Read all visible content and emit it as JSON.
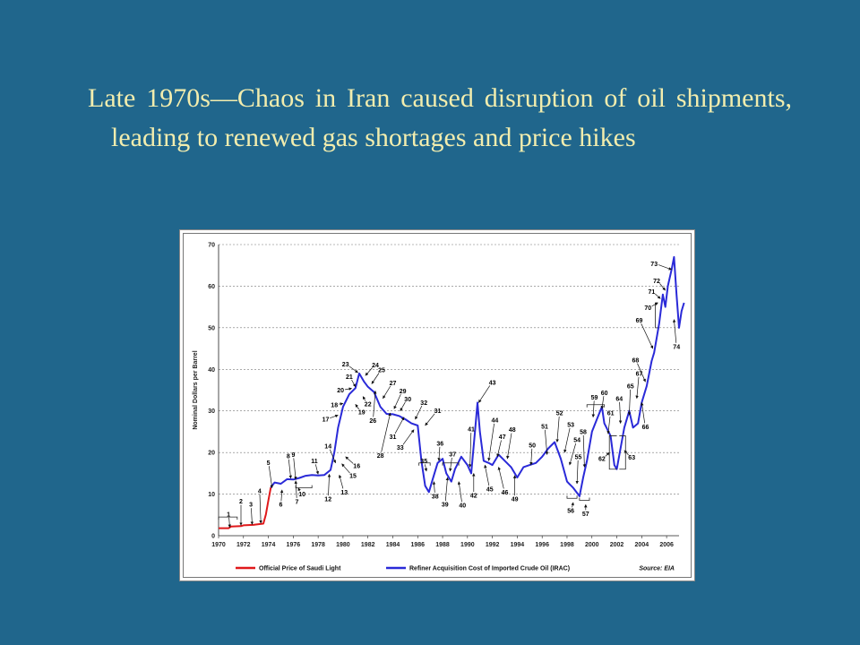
{
  "slide": {
    "title": "Late 1970s—Chaos in Iran caused disruption of oil shipments, leading to renewed gas shortages and price hikes"
  },
  "colors": {
    "background": "#20668c",
    "title_text": "#f2edae",
    "saudi_series": "#e0191b",
    "irac_series": "#2a2ad8"
  },
  "chart_data": {
    "type": "line",
    "ylabel": "Nominal Dollars per Barrel",
    "xlabel": "",
    "ylim": [
      0,
      70
    ],
    "xlim": [
      1970,
      2007
    ],
    "yticks": [
      0,
      10,
      20,
      30,
      40,
      50,
      60,
      70
    ],
    "xticks": [
      1970,
      1972,
      1974,
      1976,
      1978,
      1980,
      1982,
      1984,
      1986,
      1988,
      1990,
      1992,
      1994,
      1996,
      1998,
      2000,
      2002,
      2004,
      2006
    ],
    "grid": "horizontal dotted",
    "legend_position": "bottom",
    "source_note": "Source: EIA",
    "series": [
      {
        "name": "Official Price of Saudi Light",
        "color": "#e0191b",
        "points": [
          [
            1970,
            1.8
          ],
          [
            1970.8,
            1.8
          ],
          [
            1971,
            2.2
          ],
          [
            1971.8,
            2.3
          ],
          [
            1972,
            2.5
          ],
          [
            1972.8,
            2.6
          ],
          [
            1973,
            2.7
          ],
          [
            1973.6,
            2.9
          ],
          [
            1973.8,
            5.1
          ],
          [
            1974.0,
            8.5
          ],
          [
            1974.2,
            11.6
          ]
        ]
      },
      {
        "name": "Refiner Acquisition Cost of Imported Crude Oil (IRAC)",
        "color": "#2a2ad8",
        "points": [
          [
            1974.2,
            11.6
          ],
          [
            1974.5,
            12.8
          ],
          [
            1975,
            12.5
          ],
          [
            1975.5,
            13.6
          ],
          [
            1976,
            13.5
          ],
          [
            1976.5,
            13.9
          ],
          [
            1977,
            14.4
          ],
          [
            1977.5,
            14.6
          ],
          [
            1978,
            14.5
          ],
          [
            1978.5,
            14.6
          ],
          [
            1979,
            15.8
          ],
          [
            1979.3,
            20
          ],
          [
            1979.6,
            26
          ],
          [
            1980,
            31
          ],
          [
            1980.5,
            34
          ],
          [
            1981,
            35.5
          ],
          [
            1981.3,
            39
          ],
          [
            1981.7,
            37
          ],
          [
            1982,
            35.8
          ],
          [
            1982.5,
            34.5
          ],
          [
            1983,
            31
          ],
          [
            1983.5,
            29.3
          ],
          [
            1984,
            29.2
          ],
          [
            1984.5,
            28.8
          ],
          [
            1985,
            28
          ],
          [
            1985.5,
            27
          ],
          [
            1986,
            26.5
          ],
          [
            1986.3,
            18
          ],
          [
            1986.6,
            12
          ],
          [
            1986.9,
            10.5
          ],
          [
            1987.2,
            13.5
          ],
          [
            1987.6,
            17.5
          ],
          [
            1988,
            18.5
          ],
          [
            1988.3,
            15
          ],
          [
            1988.7,
            13
          ],
          [
            1989,
            16
          ],
          [
            1989.5,
            19
          ],
          [
            1990,
            17
          ],
          [
            1990.3,
            15
          ],
          [
            1990.6,
            25
          ],
          [
            1990.8,
            32
          ],
          [
            1991,
            25
          ],
          [
            1991.3,
            18
          ],
          [
            1991.7,
            17.5
          ],
          [
            1992,
            17
          ],
          [
            1992.5,
            19.5
          ],
          [
            1993,
            18
          ],
          [
            1993.5,
            16.5
          ],
          [
            1994,
            14
          ],
          [
            1994.5,
            16.5
          ],
          [
            1995,
            17
          ],
          [
            1995.5,
            17.5
          ],
          [
            1996,
            19
          ],
          [
            1996.5,
            21
          ],
          [
            1997,
            22.5
          ],
          [
            1997.5,
            18.5
          ],
          [
            1998,
            13
          ],
          [
            1998.5,
            11.5
          ],
          [
            1999,
            9.5
          ],
          [
            1999.3,
            14
          ],
          [
            1999.6,
            18
          ],
          [
            2000,
            25
          ],
          [
            2000.4,
            28
          ],
          [
            2000.8,
            31
          ],
          [
            2001,
            27
          ],
          [
            2001.5,
            24
          ],
          [
            2001.8,
            17
          ],
          [
            2002,
            16
          ],
          [
            2002.3,
            21
          ],
          [
            2002.6,
            26
          ],
          [
            2003,
            30
          ],
          [
            2003.3,
            26
          ],
          [
            2003.7,
            27
          ],
          [
            2004,
            32
          ],
          [
            2004.4,
            36
          ],
          [
            2004.8,
            42
          ],
          [
            2005,
            44
          ],
          [
            2005.4,
            51
          ],
          [
            2005.7,
            58
          ],
          [
            2005.9,
            55
          ],
          [
            2006.1,
            60
          ],
          [
            2006.4,
            64
          ],
          [
            2006.6,
            67
          ],
          [
            2006.8,
            58
          ],
          [
            2007,
            50
          ],
          [
            2007.2,
            54
          ],
          [
            2007.4,
            56
          ]
        ]
      }
    ],
    "annotations": [
      {
        "label": "1",
        "x": 1970.8,
        "y": 5.2,
        "ax": 1970.9,
        "ay": 2.0
      },
      {
        "label": "2",
        "x": 1971.8,
        "y": 8.3,
        "ax": 1971.8,
        "ay": 2.5
      },
      {
        "label": "3",
        "x": 1972.6,
        "y": 7.5,
        "ax": 1972.7,
        "ay": 2.7
      },
      {
        "label": "4",
        "x": 1973.3,
        "y": 10.8,
        "ax": 1973.4,
        "ay": 3.0
      },
      {
        "label": "5",
        "x": 1974.0,
        "y": 17.6,
        "ax": 1974.3,
        "ay": 11.5
      },
      {
        "label": "6",
        "x": 1975.0,
        "y": 7.5,
        "ax": 1975.1,
        "ay": 11.0
      },
      {
        "label": "7",
        "x": 1976.3,
        "y": 8.2,
        "ax": 1976.2,
        "ay": 13.2
      },
      {
        "label": "8",
        "x": 1975.6,
        "y": 19.2,
        "ax": 1975.8,
        "ay": 13.8
      },
      {
        "label": "9",
        "x": 1976.0,
        "y": 19.5,
        "ax": 1976.2,
        "ay": 13.5
      },
      {
        "label": "10",
        "x": 1976.7,
        "y": 10.0,
        "ax": 1976.4,
        "ay": 11.5
      },
      {
        "label": "11",
        "x": 1977.7,
        "y": 18.0,
        "ax": 1978.0,
        "ay": 14.8
      },
      {
        "label": "12",
        "x": 1978.8,
        "y": 8.8,
        "ax": 1978.9,
        "ay": 14.8
      },
      {
        "label": "13",
        "x": 1980.1,
        "y": 10.5,
        "ax": 1979.7,
        "ay": 14.6
      },
      {
        "label": "14",
        "x": 1978.8,
        "y": 21.5,
        "ax": 1979.4,
        "ay": 17.5
      },
      {
        "label": "15",
        "x": 1980.8,
        "y": 14.4,
        "ax": 1979.9,
        "ay": 17.3
      },
      {
        "label": "16",
        "x": 1981.1,
        "y": 16.8,
        "ax": 1980.2,
        "ay": 19.0
      },
      {
        "label": "17",
        "x": 1978.6,
        "y": 28.0,
        "ax": 1979.6,
        "ay": 29.0
      },
      {
        "label": "18",
        "x": 1979.3,
        "y": 31.5,
        "ax": 1980.0,
        "ay": 31.8
      },
      {
        "label": "19",
        "x": 1981.5,
        "y": 29.7,
        "ax": 1981.0,
        "ay": 31.6
      },
      {
        "label": "20",
        "x": 1979.8,
        "y": 35.0,
        "ax": 1980.7,
        "ay": 35.4
      },
      {
        "label": "21",
        "x": 1980.5,
        "y": 38.2,
        "ax": 1981.0,
        "ay": 35.8
      },
      {
        "label": "22",
        "x": 1982.0,
        "y": 31.7,
        "ax": 1981.6,
        "ay": 33.5
      },
      {
        "label": "23",
        "x": 1980.2,
        "y": 41.2,
        "ax": 1981.2,
        "ay": 39.2
      },
      {
        "label": "24",
        "x": 1982.6,
        "y": 41.0,
        "ax": 1981.8,
        "ay": 38.5
      },
      {
        "label": "25",
        "x": 1983.1,
        "y": 39.8,
        "ax": 1982.3,
        "ay": 36.5
      },
      {
        "label": "26",
        "x": 1982.4,
        "y": 27.7,
        "ax": 1982.6,
        "ay": 34.8
      },
      {
        "label": "27",
        "x": 1984.0,
        "y": 36.7,
        "ax": 1983.2,
        "ay": 33.0
      },
      {
        "label": "28",
        "x": 1983.0,
        "y": 19.3,
        "ax": 1983.8,
        "ay": 29.5
      },
      {
        "label": "29",
        "x": 1984.8,
        "y": 34.8,
        "ax": 1984.1,
        "ay": 30.5
      },
      {
        "label": "30",
        "x": 1985.2,
        "y": 32.9,
        "ax": 1984.6,
        "ay": 30.0
      },
      {
        "label": "31",
        "x": 1984.0,
        "y": 23.8,
        "ax": 1984.9,
        "ay": 28.5
      },
      {
        "label": "32",
        "x": 1986.5,
        "y": 32.0,
        "ax": 1985.8,
        "ay": 28.0
      },
      {
        "label": "33",
        "x": 1984.6,
        "y": 21.2,
        "ax": 1985.7,
        "ay": 25.5
      },
      {
        "label": "31",
        "x": 1987.6,
        "y": 30.0,
        "ax": 1986.6,
        "ay": 26.5
      },
      {
        "label": "35",
        "x": 1986.5,
        "y": 18.0,
        "ax": 1986.7,
        "ay": 15.5
      },
      {
        "label": "36",
        "x": 1987.8,
        "y": 22.2,
        "ax": 1987.7,
        "ay": 18.0
      },
      {
        "label": "37",
        "x": 1988.8,
        "y": 19.6,
        "ax": 1988.6,
        "ay": 15.5
      },
      {
        "label": "38",
        "x": 1987.4,
        "y": 9.5,
        "ax": 1987.3,
        "ay": 13.0
      },
      {
        "label": "39",
        "x": 1988.2,
        "y": 7.5,
        "ax": 1988.4,
        "ay": 14.0
      },
      {
        "label": "40",
        "x": 1989.6,
        "y": 7.3,
        "ax": 1989.3,
        "ay": 13.0
      },
      {
        "label": "41",
        "x": 1990.3,
        "y": 25.6,
        "ax": 1990.2,
        "ay": 16.5
      },
      {
        "label": "42",
        "x": 1990.5,
        "y": 9.7,
        "ax": 1990.5,
        "ay": 15.0
      },
      {
        "label": "43",
        "x": 1992.0,
        "y": 36.8,
        "ax": 1990.9,
        "ay": 32.0
      },
      {
        "label": "44",
        "x": 1992.2,
        "y": 27.8,
        "ax": 1991.7,
        "ay": 18.0
      },
      {
        "label": "45",
        "x": 1991.8,
        "y": 11.2,
        "ax": 1991.4,
        "ay": 17.0
      },
      {
        "label": "46",
        "x": 1993.0,
        "y": 10.5,
        "ax": 1992.5,
        "ay": 16.5
      },
      {
        "label": "47",
        "x": 1992.8,
        "y": 23.8,
        "ax": 1992.4,
        "ay": 19.0
      },
      {
        "label": "48",
        "x": 1993.6,
        "y": 25.5,
        "ax": 1993.2,
        "ay": 18.5
      },
      {
        "label": "49",
        "x": 1993.8,
        "y": 8.8,
        "ax": 1993.8,
        "ay": 14.5
      },
      {
        "label": "50",
        "x": 1995.2,
        "y": 21.8,
        "ax": 1995.1,
        "ay": 17.0
      },
      {
        "label": "51",
        "x": 1996.2,
        "y": 26.3,
        "ax": 1996.4,
        "ay": 19.5
      },
      {
        "label": "52",
        "x": 1997.4,
        "y": 29.5,
        "ax": 1997.2,
        "ay": 22.5
      },
      {
        "label": "53",
        "x": 1998.3,
        "y": 26.7,
        "ax": 1997.8,
        "ay": 20.0
      },
      {
        "label": "54",
        "x": 1998.8,
        "y": 23.0,
        "ax": 1998.2,
        "ay": 17.0
      },
      {
        "label": "55",
        "x": 1998.9,
        "y": 19.0,
        "ax": 1998.8,
        "ay": 12.5
      },
      {
        "label": "56",
        "x": 1998.3,
        "y": 6.0,
        "ax": 1998.5,
        "ay": 8.0
      },
      {
        "label": "57",
        "x": 1999.5,
        "y": 5.3,
        "ax": 1999.5,
        "ay": 7.5
      },
      {
        "label": "58",
        "x": 1999.3,
        "y": 25.0,
        "ax": 1999.4,
        "ay": 16.5
      },
      {
        "label": "59",
        "x": 2000.2,
        "y": 33.3,
        "ax": 2000.1,
        "ay": 28.5
      },
      {
        "label": "60",
        "x": 2001.0,
        "y": 34.4,
        "ax": 2000.8,
        "ay": 30.5
      },
      {
        "label": "61",
        "x": 2001.5,
        "y": 29.5,
        "ax": 2001.3,
        "ay": 24.5
      },
      {
        "label": "62",
        "x": 2000.8,
        "y": 18.5,
        "ax": 2001.4,
        "ay": 20.0
      },
      {
        "label": "63",
        "x": 2003.2,
        "y": 18.8,
        "ax": 2002.6,
        "ay": 20.5
      },
      {
        "label": "64",
        "x": 2002.2,
        "y": 33.0,
        "ax": 2002.3,
        "ay": 27.0
      },
      {
        "label": "65",
        "x": 2003.1,
        "y": 36.0,
        "ax": 2003.0,
        "ay": 29.0
      },
      {
        "label": "66",
        "x": 2004.3,
        "y": 26.2,
        "ax": 2004.0,
        "ay": 32.0
      },
      {
        "label": "67",
        "x": 2003.8,
        "y": 39.0,
        "ax": 2003.6,
        "ay": 33.0
      },
      {
        "label": "68",
        "x": 2003.5,
        "y": 42.2,
        "ax": 2004.3,
        "ay": 37.0
      },
      {
        "label": "69",
        "x": 2003.8,
        "y": 51.8,
        "ax": 2004.9,
        "ay": 45.0
      },
      {
        "label": "70",
        "x": 2004.5,
        "y": 54.8,
        "ax": 2005.3,
        "ay": 56.0
      },
      {
        "label": "71",
        "x": 2004.8,
        "y": 58.7,
        "ax": 2005.5,
        "ay": 57.0
      },
      {
        "label": "72",
        "x": 2005.2,
        "y": 61.3,
        "ax": 2005.9,
        "ay": 59.0
      },
      {
        "label": "73",
        "x": 2005.0,
        "y": 65.4,
        "ax": 2006.4,
        "ay": 64.0
      },
      {
        "label": "74",
        "x": 2006.8,
        "y": 45.5,
        "ax": 2006.6,
        "ay": 52.0
      }
    ],
    "brackets": [
      {
        "x0": 1970.0,
        "x1": 1971.5,
        "y": 4.5,
        "side": "top"
      },
      {
        "x0": 1976.2,
        "x1": 1977.5,
        "y": 11.5,
        "side": "bottom"
      },
      {
        "x0": 1986.1,
        "x1": 1987.0,
        "y": 17.5,
        "side": "top"
      },
      {
        "x0": 1988.0,
        "x1": 1989.3,
        "y": 17.5,
        "side": "top"
      },
      {
        "x0": 1998.0,
        "x1": 1998.8,
        "y": 9.0,
        "side": "bottom"
      },
      {
        "x0": 1999.0,
        "x1": 1999.8,
        "y": 8.5,
        "side": "bottom"
      },
      {
        "x0": 1999.6,
        "x1": 2001.0,
        "y": 31.5,
        "side": "top"
      },
      {
        "x0": 2001.4,
        "x1": 2002.0,
        "y": 24.0,
        "side": "left_v",
        "y1": 16.0
      },
      {
        "x0": 2002.2,
        "x1": 2002.7,
        "y": 24.0,
        "side": "right_v",
        "y1": 16.0
      },
      {
        "x0": 2005.1,
        "x1": 2005.3,
        "y": 56.0,
        "side": "left_v",
        "y1": 50.0
      }
    ]
  }
}
